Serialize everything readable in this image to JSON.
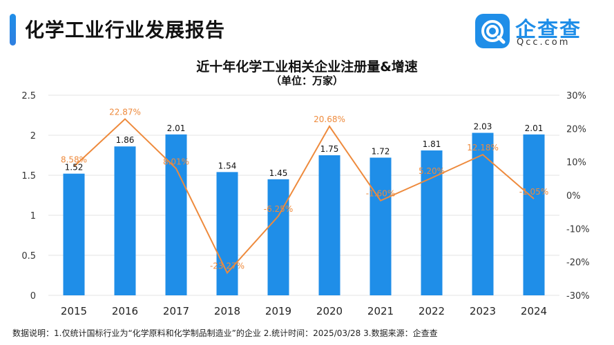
{
  "header": {
    "report_title": "化学工业行业发展报告"
  },
  "logo": {
    "name": "企查查",
    "domain": "Qcc.com",
    "brand_color": "#1f8ee8"
  },
  "footnote": "数据说明：1.仅统计国标行业为“化学原料和化学制品制造业”的企业   2.统计时间：2025/03/28   3.数据来源：企查查",
  "chart_data": {
    "type": "bar",
    "title": "近十年化学工业相关企业注册量&增速",
    "subtitle": "（单位：万家）",
    "categories": [
      "2015",
      "2016",
      "2017",
      "2018",
      "2019",
      "2020",
      "2021",
      "2022",
      "2023",
      "2024"
    ],
    "series": [
      {
        "type": "bar",
        "axis": "left",
        "color": "#1f8ee8",
        "values": [
          1.52,
          1.86,
          2.01,
          1.54,
          1.45,
          1.75,
          1.72,
          1.81,
          2.03,
          2.01
        ],
        "labels": [
          "1.52",
          "1.86",
          "2.01",
          "1.54",
          "1.45",
          "1.75",
          "1.72",
          "1.81",
          "2.03",
          "2.01"
        ]
      },
      {
        "type": "line",
        "axis": "right",
        "color": "#ee8a3c",
        "values": [
          8.58,
          22.87,
          8.01,
          -23.27,
          -6.25,
          20.68,
          -1.6,
          5.2,
          12.18,
          -1.05
        ],
        "labels": [
          "8.58%",
          "22.87%",
          "8.01%",
          "-23.27%",
          "-6.25%",
          "20.68%",
          "-1.60%",
          "5.20%",
          "12.18%",
          "-1.05%"
        ]
      }
    ],
    "y_left": {
      "min": 0,
      "max": 2.5,
      "ticks": [
        "0",
        "0.5",
        "1",
        "1.5",
        "2",
        "2.5"
      ]
    },
    "y_right": {
      "min": -30,
      "max": 30,
      "ticks": [
        "-30%",
        "-20%",
        "-10%",
        "0%",
        "10%",
        "20%",
        "30%"
      ]
    },
    "grid": true,
    "legend": "none"
  }
}
